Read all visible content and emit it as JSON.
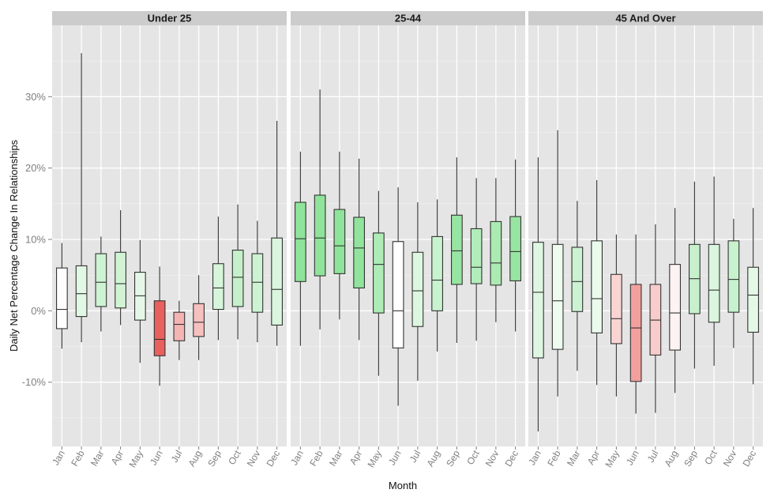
{
  "chart_data": {
    "type": "boxplot",
    "title": "",
    "xlabel": "Month",
    "ylabel": "Daily Net Percentage Change In Relationships",
    "ylim": [
      -19,
      40
    ],
    "yticks": [
      -10,
      0,
      10,
      20,
      30
    ],
    "ytick_labels": [
      "-10%",
      "0%",
      "10%",
      "20%",
      "30%"
    ],
    "grid": true,
    "months": [
      "Jan",
      "Feb",
      "Mar",
      "Apr",
      "May",
      "Jun",
      "Jul",
      "Aug",
      "Sep",
      "Oct",
      "Nov",
      "Dec"
    ],
    "fill_scale": {
      "low_color": "#e8615e",
      "mid_color": "#ffffff",
      "high_color": "#8fe39a",
      "low_value": -4,
      "high_value": 9
    },
    "panels": [
      {
        "name": "Under 25",
        "boxes": [
          {
            "month": "Jan",
            "whisker_low": -5.3,
            "q1": -2.5,
            "median": 0.2,
            "q3": 6.0,
            "whisker_high": 9.5
          },
          {
            "month": "Feb",
            "whisker_low": -4.4,
            "q1": -0.8,
            "median": 2.4,
            "q3": 6.3,
            "whisker_high": 36.1
          },
          {
            "month": "Mar",
            "whisker_low": -2.9,
            "q1": 0.6,
            "median": 4.0,
            "q3": 8.0,
            "whisker_high": 10.4
          },
          {
            "month": "Apr",
            "whisker_low": -2.0,
            "q1": 0.4,
            "median": 3.8,
            "q3": 8.2,
            "whisker_high": 14.1
          },
          {
            "month": "May",
            "whisker_low": -7.3,
            "q1": -1.3,
            "median": 2.1,
            "q3": 5.4,
            "whisker_high": 9.9
          },
          {
            "month": "Jun",
            "whisker_low": -10.5,
            "q1": -6.3,
            "median": -4.0,
            "q3": 1.4,
            "whisker_high": 6.2
          },
          {
            "month": "Jul",
            "whisker_low": -6.9,
            "q1": -4.2,
            "median": -1.9,
            "q3": -0.2,
            "whisker_high": 1.4
          },
          {
            "month": "Aug",
            "whisker_low": -6.9,
            "q1": -3.6,
            "median": -1.6,
            "q3": 1.0,
            "whisker_high": 5.0
          },
          {
            "month": "Sep",
            "whisker_low": -4.1,
            "q1": 0.2,
            "median": 3.2,
            "q3": 6.6,
            "whisker_high": 13.2
          },
          {
            "month": "Oct",
            "whisker_low": -4.0,
            "q1": 0.6,
            "median": 4.7,
            "q3": 8.5,
            "whisker_high": 14.9
          },
          {
            "month": "Nov",
            "whisker_low": -4.4,
            "q1": -0.2,
            "median": 4.0,
            "q3": 8.0,
            "whisker_high": 12.6
          },
          {
            "month": "Dec",
            "whisker_low": -4.9,
            "q1": -2.0,
            "median": 3.0,
            "q3": 10.2,
            "whisker_high": 26.6
          }
        ]
      },
      {
        "name": "25-44",
        "boxes": [
          {
            "month": "Jan",
            "whisker_low": -4.9,
            "q1": 4.1,
            "median": 10.1,
            "q3": 15.2,
            "whisker_high": 22.3
          },
          {
            "month": "Feb",
            "whisker_low": -2.6,
            "q1": 4.9,
            "median": 10.2,
            "q3": 16.2,
            "whisker_high": 31.0
          },
          {
            "month": "Mar",
            "whisker_low": -1.2,
            "q1": 5.2,
            "median": 9.1,
            "q3": 14.2,
            "whisker_high": 22.3
          },
          {
            "month": "Apr",
            "whisker_low": -4.1,
            "q1": 3.2,
            "median": 8.8,
            "q3": 13.1,
            "whisker_high": 21.3
          },
          {
            "month": "May",
            "whisker_low": -9.1,
            "q1": -0.3,
            "median": 6.5,
            "q3": 10.9,
            "whisker_high": 16.8
          },
          {
            "month": "Jun",
            "whisker_low": -13.3,
            "q1": -5.2,
            "median": 0.0,
            "q3": 9.7,
            "whisker_high": 17.3
          },
          {
            "month": "Jul",
            "whisker_low": -9.8,
            "q1": -2.2,
            "median": 2.8,
            "q3": 8.2,
            "whisker_high": 15.2
          },
          {
            "month": "Aug",
            "whisker_low": -5.7,
            "q1": 0.0,
            "median": 4.3,
            "q3": 10.4,
            "whisker_high": 15.6
          },
          {
            "month": "Sep",
            "whisker_low": -4.5,
            "q1": 3.7,
            "median": 8.4,
            "q3": 13.4,
            "whisker_high": 21.5
          },
          {
            "month": "Oct",
            "whisker_low": -4.2,
            "q1": 3.8,
            "median": 6.1,
            "q3": 11.5,
            "whisker_high": 18.6
          },
          {
            "month": "Nov",
            "whisker_low": -1.6,
            "q1": 3.6,
            "median": 6.7,
            "q3": 12.5,
            "whisker_high": 18.6
          },
          {
            "month": "Dec",
            "whisker_low": -2.9,
            "q1": 4.2,
            "median": 8.3,
            "q3": 13.2,
            "whisker_high": 21.2
          }
        ]
      },
      {
        "name": "45 And Over",
        "boxes": [
          {
            "month": "Jan",
            "whisker_low": -16.9,
            "q1": -6.6,
            "median": 2.6,
            "q3": 9.6,
            "whisker_high": 21.5
          },
          {
            "month": "Feb",
            "whisker_low": -12.0,
            "q1": -5.4,
            "median": 1.4,
            "q3": 9.3,
            "whisker_high": 25.3
          },
          {
            "month": "Mar",
            "whisker_low": -8.4,
            "q1": -0.1,
            "median": 4.1,
            "q3": 8.9,
            "whisker_high": 15.4
          },
          {
            "month": "Apr",
            "whisker_low": -10.4,
            "q1": -3.1,
            "median": 1.7,
            "q3": 9.8,
            "whisker_high": 18.3
          },
          {
            "month": "May",
            "whisker_low": -12.0,
            "q1": -4.6,
            "median": -1.1,
            "q3": 5.1,
            "whisker_high": 10.7
          },
          {
            "month": "Jun",
            "whisker_low": -14.4,
            "q1": -9.9,
            "median": -2.4,
            "q3": 3.7,
            "whisker_high": 10.7
          },
          {
            "month": "Jul",
            "whisker_low": -14.3,
            "q1": -6.2,
            "median": -1.3,
            "q3": 3.7,
            "whisker_high": 12.1
          },
          {
            "month": "Aug",
            "whisker_low": -11.5,
            "q1": -5.5,
            "median": -0.3,
            "q3": 6.5,
            "whisker_high": 14.4
          },
          {
            "month": "Sep",
            "whisker_low": -8.1,
            "q1": -0.4,
            "median": 4.5,
            "q3": 9.3,
            "whisker_high": 18.1
          },
          {
            "month": "Oct",
            "whisker_low": -7.7,
            "q1": -1.6,
            "median": 2.9,
            "q3": 9.3,
            "whisker_high": 18.8
          },
          {
            "month": "Nov",
            "whisker_low": -5.2,
            "q1": -0.2,
            "median": 4.4,
            "q3": 9.8,
            "whisker_high": 12.9
          },
          {
            "month": "Dec",
            "whisker_low": -10.3,
            "q1": -3.0,
            "median": 2.2,
            "q3": 6.1,
            "whisker_high": 14.4
          }
        ]
      }
    ]
  }
}
